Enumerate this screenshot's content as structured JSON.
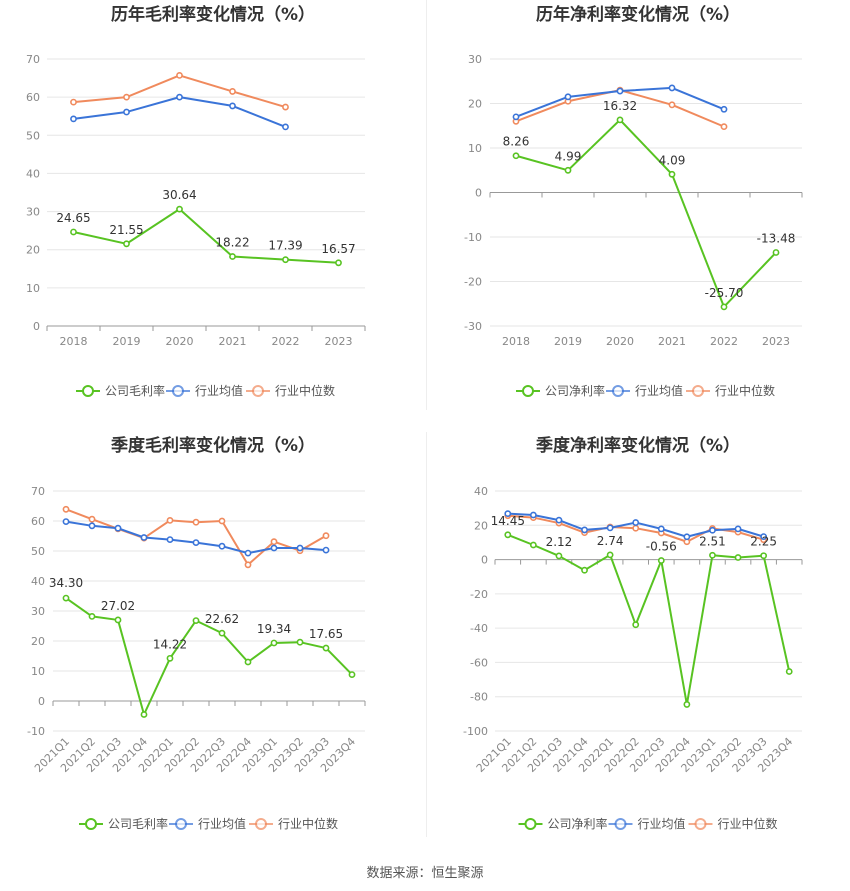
{
  "source_label": "数据来源：恒生聚源",
  "colors": {
    "company": "#58c322",
    "industry_avg": "#3a74d8",
    "industry_median": "#f08a5d"
  },
  "legend": {
    "company_gross": "公司毛利率",
    "company_net": "公司净利率",
    "industry_avg": "行业均值",
    "industry_median": "行业中位数"
  },
  "chart_data": [
    {
      "type": "line",
      "title": "历年毛利率变化情况（%）",
      "categories": [
        "2018",
        "2019",
        "2020",
        "2021",
        "2022",
        "2023"
      ],
      "ylim": [
        0,
        70
      ],
      "yticks": [
        0,
        10,
        20,
        30,
        40,
        50,
        60,
        70
      ],
      "series": [
        {
          "name": "公司毛利率",
          "values": [
            24.65,
            21.55,
            30.64,
            18.22,
            17.39,
            16.57
          ],
          "labels": [
            "24.65",
            "21.55",
            "30.64",
            "18.22",
            "17.39",
            "16.57"
          ]
        },
        {
          "name": "行业均值",
          "values": [
            54.3,
            56.1,
            60.0,
            57.7,
            52.2,
            null
          ]
        },
        {
          "name": "行业中位数",
          "values": [
            58.7,
            60.0,
            65.7,
            61.5,
            57.4,
            null
          ]
        }
      ]
    },
    {
      "type": "line",
      "title": "历年净利率变化情况（%）",
      "categories": [
        "2018",
        "2019",
        "2020",
        "2021",
        "2022",
        "2023"
      ],
      "ylim": [
        -30,
        30
      ],
      "yticks": [
        -30,
        -20,
        -10,
        0,
        10,
        20,
        30
      ],
      "series": [
        {
          "name": "公司净利率",
          "values": [
            8.26,
            4.99,
            16.32,
            4.09,
            -25.7,
            -13.48
          ],
          "labels": [
            "8.26",
            "4.99",
            "16.32",
            "4.09",
            "-25.70",
            "-13.48"
          ]
        },
        {
          "name": "行业均值",
          "values": [
            17.0,
            21.5,
            22.8,
            23.5,
            18.7,
            null
          ]
        },
        {
          "name": "行业中位数",
          "values": [
            16.0,
            20.5,
            23.0,
            19.7,
            14.8,
            null
          ]
        }
      ]
    },
    {
      "type": "line",
      "title": "季度毛利率变化情况（%）",
      "categories": [
        "2021Q1",
        "2021Q2",
        "2021Q3",
        "2021Q4",
        "2022Q1",
        "2022Q2",
        "2022Q3",
        "2022Q4",
        "2023Q1",
        "2023Q2",
        "2023Q3",
        "2023Q4"
      ],
      "ylim": [
        -10,
        70
      ],
      "yticks": [
        -10,
        0,
        10,
        20,
        30,
        40,
        50,
        60,
        70
      ],
      "series": [
        {
          "name": "公司毛利率",
          "values": [
            34.3,
            28.2,
            27.02,
            -4.5,
            14.22,
            26.8,
            22.62,
            13.0,
            19.34,
            19.6,
            17.65,
            8.8
          ],
          "labels": [
            "34.30",
            "",
            "27.02",
            "",
            "14.22",
            "",
            "22.62",
            "",
            "19.34",
            "",
            "17.65",
            ""
          ]
        },
        {
          "name": "行业均值",
          "values": [
            59.8,
            58.4,
            57.6,
            54.5,
            53.8,
            52.8,
            51.6,
            49.3,
            51.0,
            51.0,
            50.3,
            null
          ]
        },
        {
          "name": "行业中位数",
          "values": [
            63.9,
            60.6,
            57.4,
            54.3,
            60.2,
            59.6,
            60.0,
            45.4,
            53.1,
            50.1,
            55.1,
            null
          ]
        }
      ]
    },
    {
      "type": "line",
      "title": "季度净利率变化情况（%）",
      "categories": [
        "2021Q1",
        "2021Q2",
        "2021Q3",
        "2021Q4",
        "2022Q1",
        "2022Q2",
        "2022Q3",
        "2022Q4",
        "2023Q1",
        "2023Q2",
        "2023Q3",
        "2023Q4"
      ],
      "ylim": [
        -100,
        40
      ],
      "yticks": [
        -100,
        -80,
        -60,
        -40,
        -20,
        0,
        20,
        40
      ],
      "series": [
        {
          "name": "公司净利率",
          "values": [
            14.45,
            8.5,
            2.12,
            -6.2,
            2.74,
            -38.0,
            -0.56,
            -84.5,
            2.51,
            1.2,
            2.25,
            -65.3
          ],
          "labels": [
            "14.45",
            "",
            "2.12",
            "",
            "2.74",
            "",
            "-0.56",
            "",
            "2.51",
            "",
            "2.25",
            ""
          ]
        },
        {
          "name": "行业均值",
          "values": [
            26.8,
            26.0,
            23.0,
            17.3,
            18.5,
            21.6,
            17.9,
            13.3,
            17.1,
            17.9,
            13.4,
            null
          ]
        },
        {
          "name": "行业中位数",
          "values": [
            25.6,
            24.5,
            21.3,
            15.7,
            19.0,
            18.3,
            15.5,
            10.4,
            18.1,
            16.0,
            11.6,
            null
          ]
        }
      ]
    }
  ]
}
